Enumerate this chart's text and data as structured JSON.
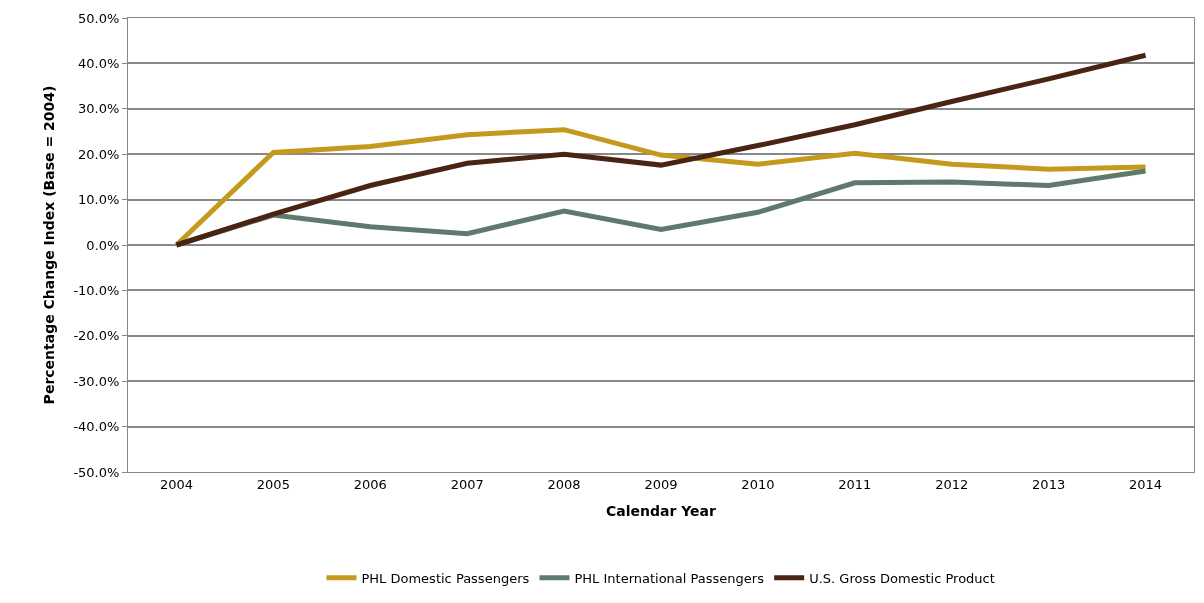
{
  "chart_data": {
    "type": "line",
    "xlabel": "Calendar Year",
    "ylabel": "Percentage Change Index (Base = 2004)",
    "categories": [
      "2004",
      "2005",
      "2006",
      "2007",
      "2008",
      "2009",
      "2010",
      "2011",
      "2012",
      "2013",
      "2014"
    ],
    "series": [
      {
        "name": "PHL Domestic Passengers",
        "color": "#c49a1c",
        "values": [
          0,
          20.4,
          21.7,
          24.3,
          25.4,
          19.8,
          17.8,
          20.2,
          17.8,
          16.7,
          17.2
        ]
      },
      {
        "name": "PHL International Passengers",
        "color": "#5f7a6a",
        "values": [
          0,
          6.6,
          4.0,
          2.5,
          7.5,
          3.4,
          7.2,
          13.7,
          13.9,
          13.1,
          16.3
        ]
      },
      {
        "name": "U.S. Gross Domestic Product",
        "color": "#4a2412",
        "values": [
          0,
          6.8,
          13.1,
          18.0,
          20.0,
          17.6,
          21.9,
          26.5,
          31.6,
          36.6,
          41.8
        ]
      }
    ],
    "ylim": [
      -50,
      50
    ],
    "yticks": [
      {
        "value": -50,
        "label": "-50.0%"
      },
      {
        "value": -40,
        "label": "-40.0%"
      },
      {
        "value": -30,
        "label": "-30.0%"
      },
      {
        "value": -20,
        "label": "-20.0%"
      },
      {
        "value": -10,
        "label": "-10.0%"
      },
      {
        "value": 0,
        "label": "0.0%"
      },
      {
        "value": 10,
        "label": "10.0%"
      },
      {
        "value": 20,
        "label": "20.0%"
      },
      {
        "value": 30,
        "label": "30.0%"
      },
      {
        "value": 40,
        "label": "40.0%"
      },
      {
        "value": 50,
        "label": "50.0%"
      }
    ],
    "grid": "y",
    "legend": "bottom",
    "marker": "none",
    "line_style": "solid"
  }
}
